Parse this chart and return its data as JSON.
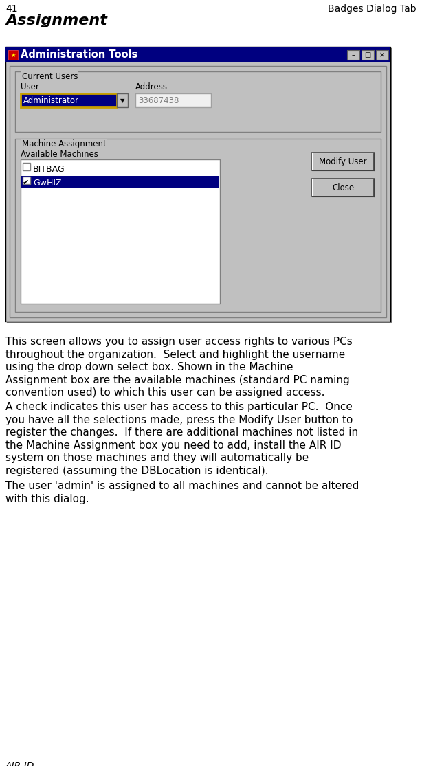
{
  "page_num": "41",
  "section_title": "Badges Dialog Tab",
  "page_title": "Assignment",
  "footer": "AIR ID",
  "bg_color": "#ffffff",
  "dialog_title": "Administration Tools",
  "dialog_bg": "#c0c0c0",
  "dialog_title_bg": "#000080",
  "dialog_title_fg": "#ffffff",
  "body_text_1": "This screen allows you to assign user access rights to various PCs\nthroughout the organization.  Select and highlight the username\nusing the drop down select box. Shown in the Machine\nAssignment box are the available machines (standard PC naming\nconvention used) to which this user can be assigned access.",
  "body_text_2": "A check indicates this user has access to this particular PC.  Once\nyou have all the selections made, press the Modify User button to\nregister the changes.  If there are additional machines not listed in\nthe Machine Assignment box you need to add, install the AIR ID\nsystem on those machines and they will automatically be\nregistered (assuming the DBLocation is identical).",
  "body_text_3": "The user 'admin' is assigned to all machines and cannot be altered\nwith this dialog.",
  "font_size_body": 11.0,
  "font_size_header": 10,
  "font_size_page_title": 16
}
